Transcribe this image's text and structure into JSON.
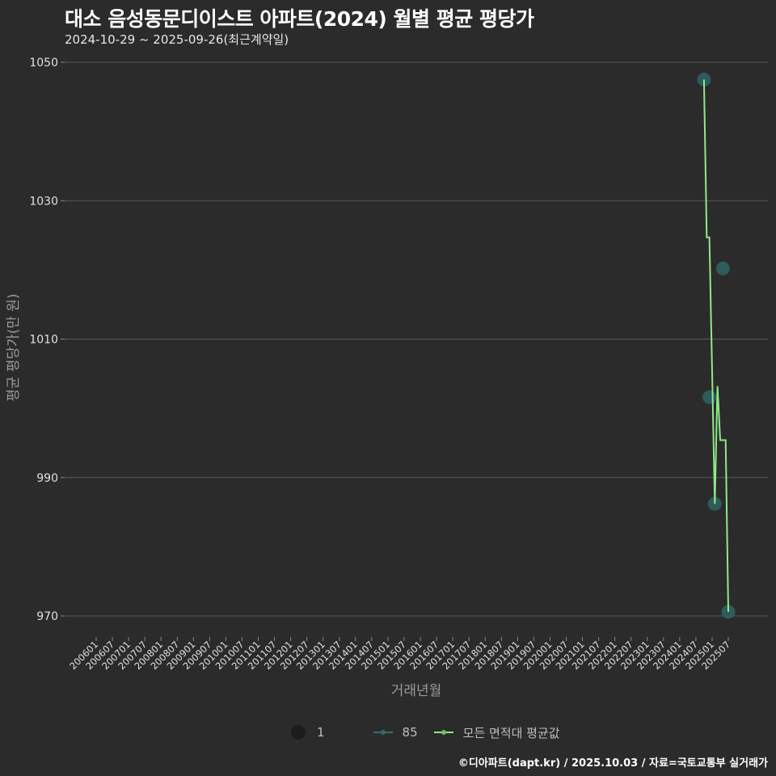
{
  "header": {
    "title": "대소 음성동문디이스트 아파트(2024) 월별 평균 평당가",
    "subtitle": "2024-10-29 ~ 2025-09-26(최근계약일)"
  },
  "caption": "©디아파트(dapt.kr) / 2025.10.03 / 자료=국토교통부 실거래가",
  "colors": {
    "background": "#2b2b2b",
    "grid": "#5a5a5a",
    "series_85": "#2e5e5e",
    "series_avg": "#90e88a",
    "axis_text": "#e0e0e0",
    "axis_title": "#9a9a9a"
  },
  "legend": {
    "size_label": "1",
    "series": [
      {
        "name": "85",
        "color": "#3a7a7a"
      },
      {
        "name": "모든 면적대 평균값",
        "color": "#90e88a"
      }
    ]
  },
  "chart_data": {
    "type": "line",
    "title": "대소 음성동문디이스트 아파트(2024) 월별 평균 평당가",
    "subtitle": "2024-10-29 ~ 2025-09-26(최근계약일)",
    "xlabel": "거래년월",
    "ylabel": "평균 평당가(만 원)",
    "ylim": [
      967,
      1052
    ],
    "yticks": [
      970,
      990,
      1010,
      1030,
      1050
    ],
    "grid": true,
    "legend_position": "bottom",
    "xticks": [
      "200601",
      "200607",
      "200701",
      "200707",
      "200801",
      "200807",
      "200901",
      "200907",
      "201001",
      "201007",
      "201101",
      "201107",
      "201201",
      "201207",
      "201301",
      "201307",
      "201401",
      "201407",
      "201501",
      "201507",
      "201601",
      "201607",
      "201701",
      "201707",
      "201801",
      "201807",
      "201901",
      "201907",
      "202001",
      "202007",
      "202101",
      "202107",
      "202201",
      "202207",
      "202301",
      "202307",
      "202401",
      "202407",
      "202501",
      "202507"
    ],
    "series": [
      {
        "name": "85",
        "kind": "scatter",
        "points": [
          {
            "x": "202410",
            "y": 1047.5
          },
          {
            "x": "202412",
            "y": 1001.6
          },
          {
            "x": "202502",
            "y": 986.2
          },
          {
            "x": "202505",
            "y": 1020.2
          },
          {
            "x": "202507",
            "y": 970.6
          }
        ]
      },
      {
        "name": "모든 면적대 평균값",
        "kind": "step-line",
        "points": [
          {
            "x": "202410",
            "y": 1047.5
          },
          {
            "x": "202411",
            "y": 1024.7
          },
          {
            "x": "202412",
            "y": 1024.7
          },
          {
            "x": "202502",
            "y": 986.2
          },
          {
            "x": "202503",
            "y": 1003.2
          },
          {
            "x": "202504",
            "y": 995.4
          },
          {
            "x": "202506",
            "y": 995.4
          },
          {
            "x": "202507",
            "y": 970.6
          }
        ]
      }
    ]
  }
}
